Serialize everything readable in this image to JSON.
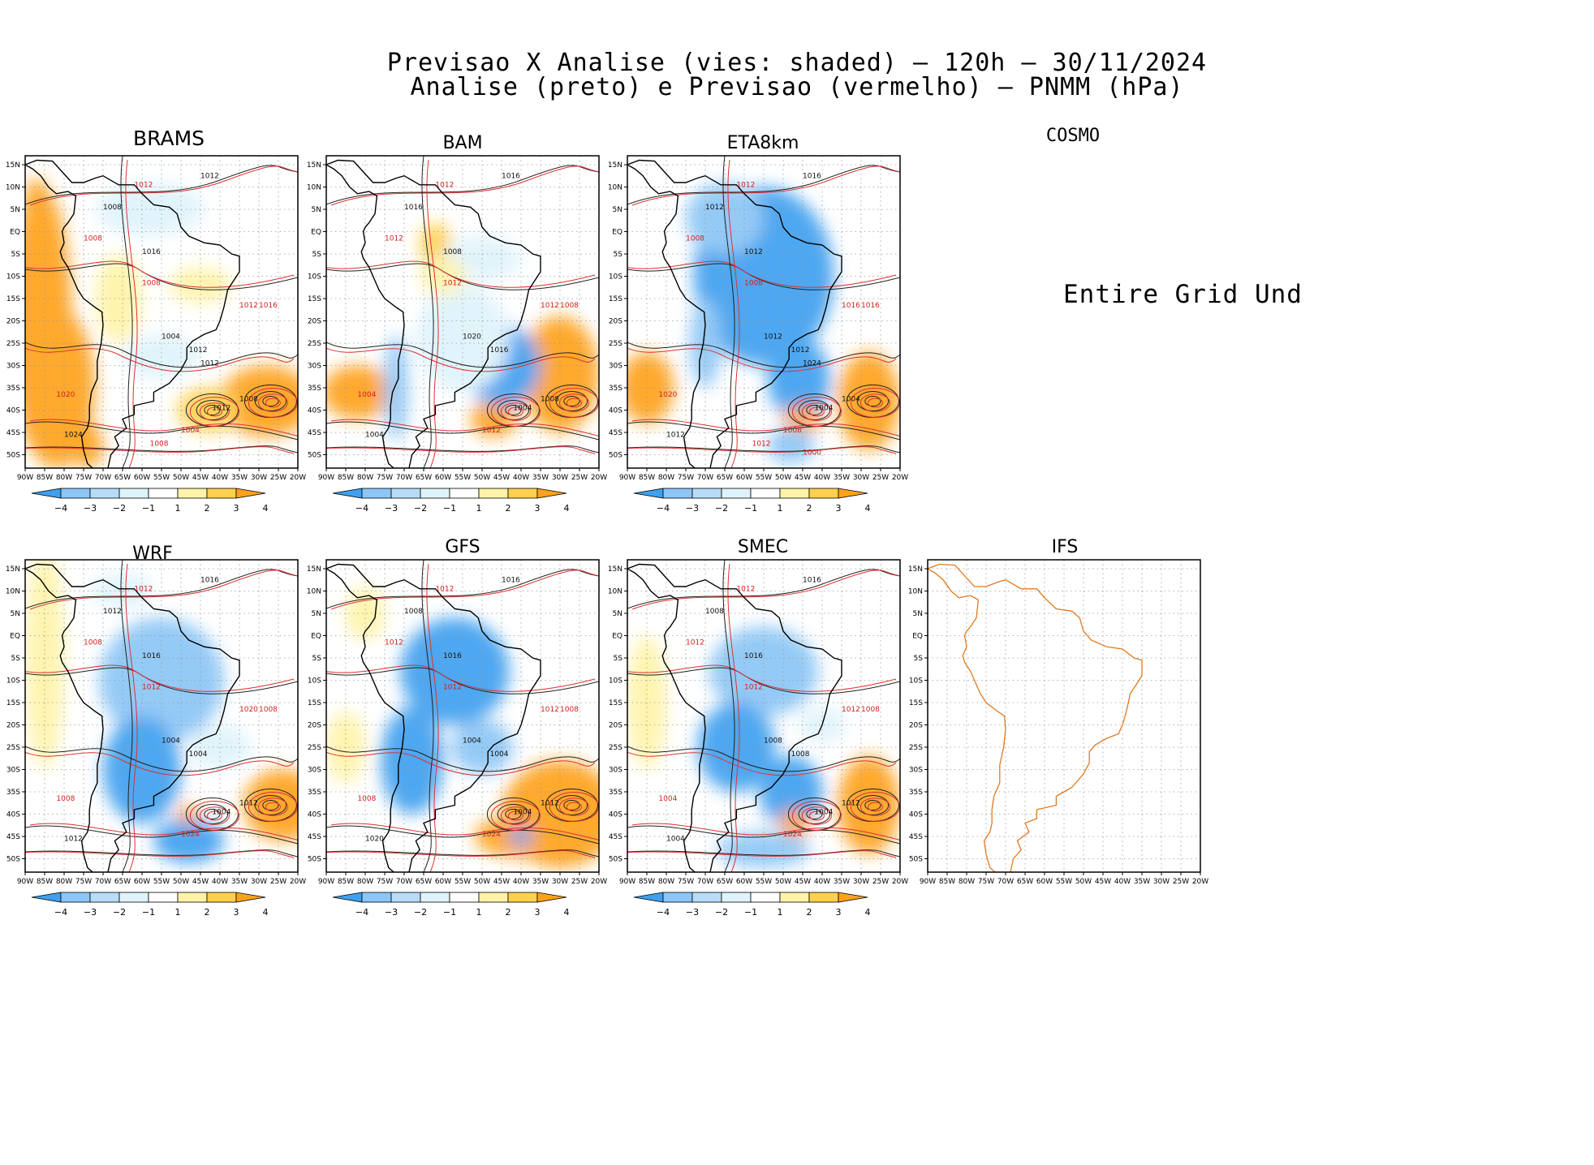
{
  "header": {
    "line1": "Previsao X Analise (vies: shaded) — 120h — 30/11/2024",
    "line2": "Analise (preto) e Previsao (vermelho) — PNMM (hPa)"
  },
  "axes": {
    "lat_labels": [
      "15N",
      "10N",
      "5N",
      "EQ",
      "5S",
      "10S",
      "15S",
      "20S",
      "25S",
      "30S",
      "35S",
      "40S",
      "45S",
      "50S"
    ],
    "lon_labels": [
      "90W",
      "85W",
      "80W",
      "75W",
      "70W",
      "65W",
      "60W",
      "55W",
      "50W",
      "45W",
      "40W",
      "35W",
      "30W",
      "25W",
      "20W"
    ]
  },
  "colorbar": {
    "labels": [
      "−4",
      "−3",
      "−2",
      "−1",
      "1",
      "2",
      "3",
      "4"
    ],
    "colors": [
      "#3fa0f0",
      "#8cc6f6",
      "#b8dcf8",
      "#dff3fb",
      "#ffffff",
      "#fff3a8",
      "#ffd04e",
      "#ffa21a"
    ]
  },
  "panels": [
    {
      "id": "brams",
      "name": "BRAMS"
    },
    {
      "id": "bam",
      "name": "BAM"
    },
    {
      "id": "eta",
      "name": "ETA8km"
    },
    {
      "id": "cosmo",
      "name": "COSMO",
      "message": "Entire Grid Und"
    },
    {
      "id": "wrf",
      "name": "WRF"
    },
    {
      "id": "gfs",
      "name": "GFS"
    },
    {
      "id": "smec",
      "name": "SMEC"
    },
    {
      "id": "ifs",
      "name": "IFS"
    }
  ],
  "contour_labels": {
    "brams": [
      "1012",
      "1012",
      "1008",
      "1008",
      "1016",
      "1012",
      "1004",
      "1008",
      "1012",
      "1020",
      "1024",
      "1016",
      "1012",
      "1004",
      "1008",
      "1008",
      "1012"
    ],
    "bam": [
      "1016",
      "1012",
      "1016",
      "1012",
      "1008",
      "1012",
      "1020",
      "1012",
      "1016",
      "1004",
      "1004",
      "1008",
      "1004",
      "1012",
      "1008"
    ],
    "eta": [
      "1016",
      "1012",
      "1012",
      "1008",
      "1012",
      "1016",
      "1012",
      "1008",
      "1012",
      "1020",
      "1012",
      "1016",
      "1004",
      "1008",
      "1004",
      "1012",
      "1024",
      "1000"
    ],
    "wrf": [
      "1016",
      "1012",
      "1012",
      "1008",
      "1016",
      "1020",
      "1004",
      "1012",
      "1004",
      "1008",
      "1012",
      "1008",
      "1004",
      "1024",
      "1012"
    ],
    "gfs": [
      "1016",
      "1012",
      "1008",
      "1012",
      "1016",
      "1012",
      "1004",
      "1012",
      "1004",
      "1008",
      "1020",
      "1008",
      "1004",
      "1024",
      "1012"
    ],
    "smec": [
      "1016",
      "1012",
      "1008",
      "1012",
      "1016",
      "1012",
      "1008",
      "1012",
      "1008",
      "1004",
      "1004",
      "1008",
      "1004",
      "1024",
      "1012"
    ]
  }
}
